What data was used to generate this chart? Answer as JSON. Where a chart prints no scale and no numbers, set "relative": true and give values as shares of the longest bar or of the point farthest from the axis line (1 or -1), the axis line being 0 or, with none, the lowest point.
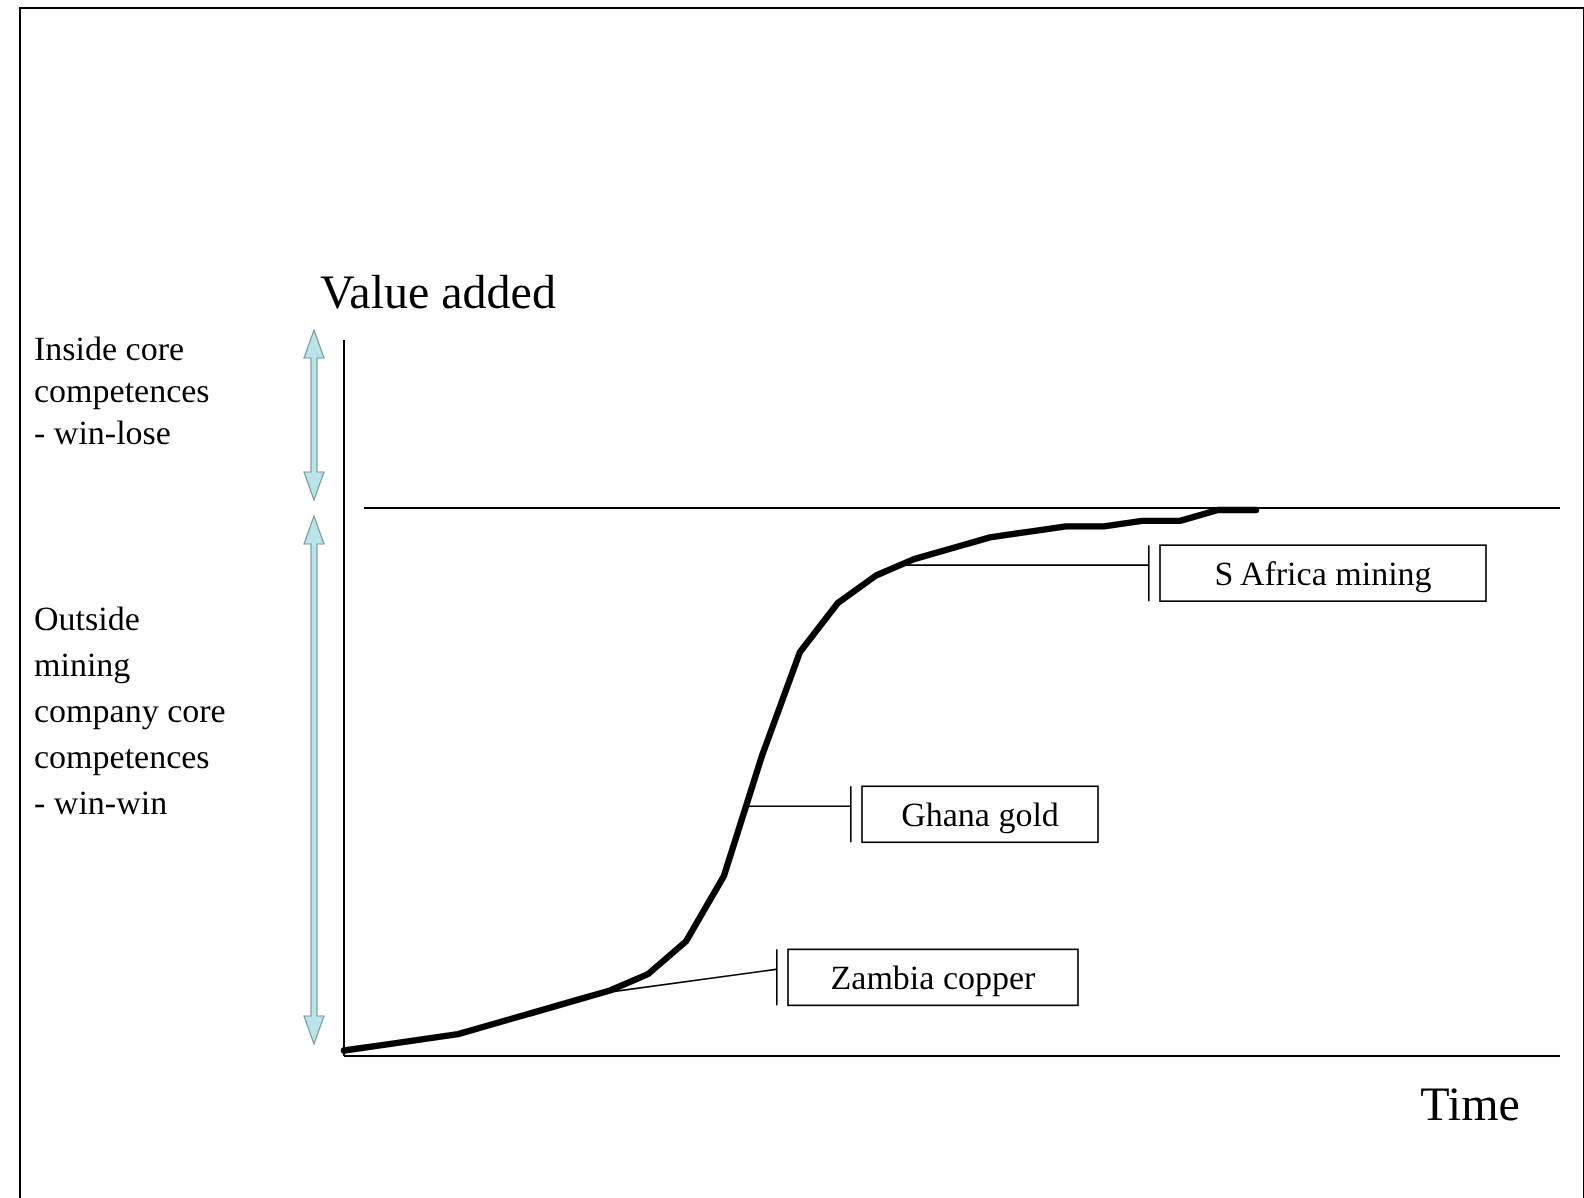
{
  "chart_data": {
    "type": "line",
    "relative": true,
    "xlabel": "Time",
    "ylabel": "Value added",
    "marker": "none",
    "line_style": "solid",
    "categories": [
      null,
      null,
      null,
      null,
      null,
      null,
      null,
      null,
      null,
      null,
      null,
      null,
      null,
      null,
      null,
      null,
      null,
      null,
      null,
      null,
      null,
      null,
      null,
      null,
      null
    ],
    "series": [
      {
        "color": "#000000",
        "values": [
          0.01,
          0.02,
          0.03,
          0.04,
          0.06,
          0.08,
          0.1,
          0.12,
          0.15,
          0.21,
          0.33,
          0.55,
          0.74,
          0.83,
          0.88,
          0.91,
          0.93,
          0.95,
          0.96,
          0.97,
          0.97,
          0.98,
          0.98,
          1.0,
          1.0
        ]
      }
    ],
    "annotations": [
      "S Africa mining",
      "Ghana gold",
      "Zambia copper",
      "Inside core competences - win-lose",
      "Outside mining company core competences - win-win"
    ]
  }
}
